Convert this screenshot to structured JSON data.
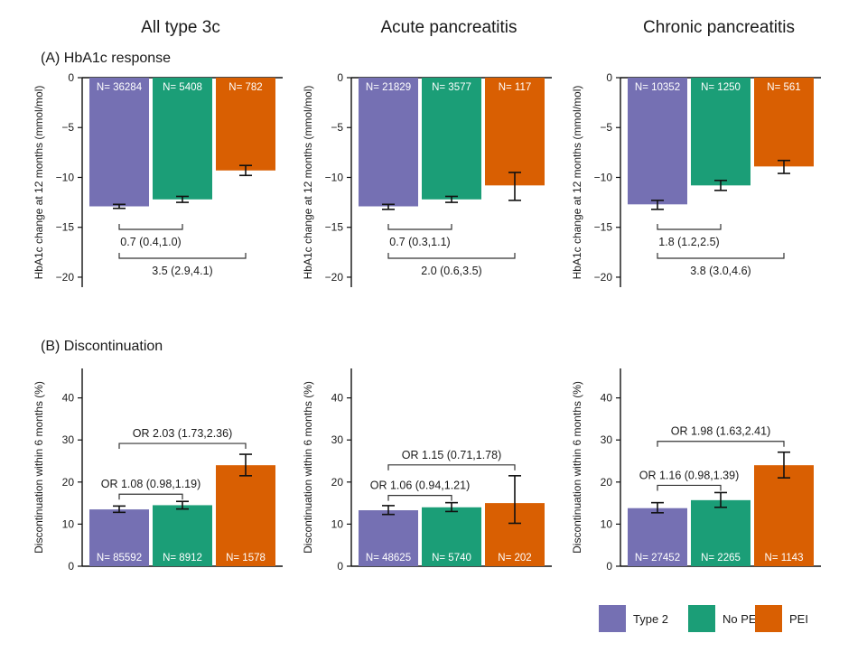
{
  "column_titles": [
    "All type 3c",
    "Acute pancreatitis",
    "Chronic pancreatitis"
  ],
  "row_titles": [
    "(A) HbA1c response",
    "(B) Discontinuation"
  ],
  "legend": [
    {
      "label": "Type 2",
      "color": "#7570b3"
    },
    {
      "label": "No PEI",
      "color": "#1b9e77"
    },
    {
      "label": "PEI",
      "color": "#d95f02"
    }
  ],
  "chart_data": [
    {
      "type": "bar",
      "panel": "A",
      "column": "All type 3c",
      "ylabel": "HbA1c change at 12 months (mmol/mol)",
      "ylim": [
        -21,
        0
      ],
      "yticks": [
        0,
        -5,
        -10,
        -15,
        -20
      ],
      "categories": [
        "Type 2",
        "No PEI",
        "PEI"
      ],
      "values": [
        -12.9,
        -12.2,
        -9.3
      ],
      "err_low": [
        -13.1,
        -12.5,
        -9.8
      ],
      "err_high": [
        -12.7,
        -11.9,
        -8.8
      ],
      "n_labels": [
        "N= 36284",
        "N= 5408",
        "N= 782"
      ],
      "comparisons": [
        {
          "from": 0,
          "to": 1,
          "label": "0.7 (0.4,1.0)",
          "level": 1
        },
        {
          "from": 0,
          "to": 2,
          "label": "3.5 (2.9,4.1)",
          "level": 2
        }
      ]
    },
    {
      "type": "bar",
      "panel": "A",
      "column": "Acute pancreatitis",
      "ylabel": "HbA1c change at 12 months (mmol/mol)",
      "ylim": [
        -21,
        0
      ],
      "yticks": [
        0,
        -5,
        -10,
        -15,
        -20
      ],
      "categories": [
        "Type 2",
        "No PEI",
        "PEI"
      ],
      "values": [
        -12.9,
        -12.2,
        -10.8
      ],
      "err_low": [
        -13.2,
        -12.5,
        -12.3
      ],
      "err_high": [
        -12.7,
        -11.9,
        -9.5
      ],
      "n_labels": [
        "N= 21829",
        "N= 3577",
        "N= 117"
      ],
      "comparisons": [
        {
          "from": 0,
          "to": 1,
          "label": "0.7 (0.3,1.1)",
          "level": 1
        },
        {
          "from": 0,
          "to": 2,
          "label": "2.0 (0.6,3.5)",
          "level": 2
        }
      ]
    },
    {
      "type": "bar",
      "panel": "A",
      "column": "Chronic pancreatitis",
      "ylabel": "HbA1c change at 12 months (mmol/mol)",
      "ylim": [
        -21,
        0
      ],
      "yticks": [
        0,
        -5,
        -10,
        -15,
        -20
      ],
      "categories": [
        "Type 2",
        "No PEI",
        "PEI"
      ],
      "values": [
        -12.7,
        -10.8,
        -8.9
      ],
      "err_low": [
        -13.2,
        -11.3,
        -9.6
      ],
      "err_high": [
        -12.3,
        -10.3,
        -8.3
      ],
      "n_labels": [
        "N= 10352",
        "N= 1250",
        "N= 561"
      ],
      "comparisons": [
        {
          "from": 0,
          "to": 1,
          "label": "1.8 (1.2,2.5)",
          "level": 1
        },
        {
          "from": 0,
          "to": 2,
          "label": "3.8 (3.0,4.6)",
          "level": 2
        }
      ]
    },
    {
      "type": "bar",
      "panel": "B",
      "column": "All type 3c",
      "ylabel": "Discontinuation within 6 months (%)",
      "ylim": [
        0,
        47
      ],
      "yticks": [
        0,
        10,
        20,
        30,
        40
      ],
      "categories": [
        "Type 2",
        "No PEI",
        "PEI"
      ],
      "values": [
        13.5,
        14.5,
        24.0
      ],
      "err_low": [
        12.8,
        13.6,
        21.5
      ],
      "err_high": [
        14.3,
        15.4,
        26.6
      ],
      "n_labels": [
        "N= 85592",
        "N= 8912",
        "N= 1578"
      ],
      "comparisons": [
        {
          "from": 0,
          "to": 1,
          "label": "OR 1.08 (0.98,1.19)",
          "level": 1
        },
        {
          "from": 0,
          "to": 2,
          "label": "OR 2.03 (1.73,2.36)",
          "level": 2
        }
      ]
    },
    {
      "type": "bar",
      "panel": "B",
      "column": "Acute pancreatitis",
      "ylabel": "Discontinuation within 6 months (%)",
      "ylim": [
        0,
        47
      ],
      "yticks": [
        0,
        10,
        20,
        30,
        40
      ],
      "categories": [
        "Type 2",
        "No PEI",
        "PEI"
      ],
      "values": [
        13.3,
        14.0,
        15.0
      ],
      "err_low": [
        12.3,
        13.0,
        10.2
      ],
      "err_high": [
        14.4,
        15.1,
        21.5
      ],
      "n_labels": [
        "N= 48625",
        "N= 5740",
        "N= 202"
      ],
      "comparisons": [
        {
          "from": 0,
          "to": 1,
          "label": "OR 1.06 (0.94,1.21)",
          "level": 1
        },
        {
          "from": 0,
          "to": 2,
          "label": "OR 1.15 (0.71,1.78)",
          "level": 2
        }
      ]
    },
    {
      "type": "bar",
      "panel": "B",
      "column": "Chronic pancreatitis",
      "ylabel": "Discontinuation within 6 months (%)",
      "ylim": [
        0,
        47
      ],
      "yticks": [
        0,
        10,
        20,
        30,
        40
      ],
      "categories": [
        "Type 2",
        "No PEI",
        "PEI"
      ],
      "values": [
        13.8,
        15.7,
        24.0
      ],
      "err_low": [
        12.7,
        14.0,
        21.0
      ],
      "err_high": [
        15.1,
        17.5,
        27.1
      ],
      "n_labels": [
        "N= 27452",
        "N= 2265",
        "N= 1143"
      ],
      "comparisons": [
        {
          "from": 0,
          "to": 1,
          "label": "OR 1.16 (0.98,1.39)",
          "level": 1
        },
        {
          "from": 0,
          "to": 2,
          "label": "OR 1.98 (1.63,2.41)",
          "level": 2
        }
      ]
    }
  ]
}
